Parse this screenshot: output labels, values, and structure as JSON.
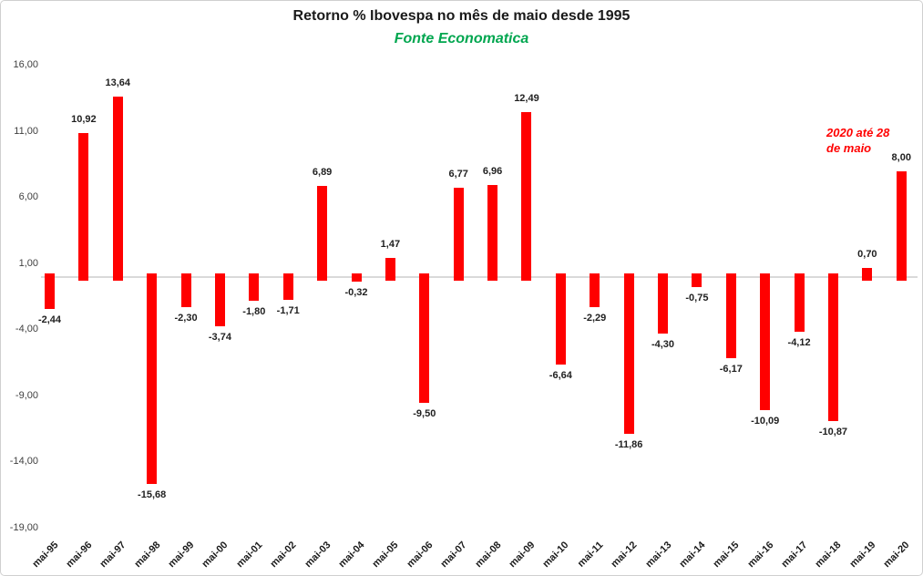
{
  "chart_data": {
    "type": "bar",
    "title": "Retorno % Ibovespa no mês de maio desde 1995",
    "subtitle": "Fonte Economatica",
    "categories": [
      "mai-95",
      "mai-96",
      "mai-97",
      "mai-98",
      "mai-99",
      "mai-00",
      "mai-01",
      "mai-02",
      "mai-03",
      "mai-04",
      "mai-05",
      "mai-06",
      "mai-07",
      "mai-08",
      "mai-09",
      "mai-10",
      "mai-11",
      "mai-12",
      "mai-13",
      "mai-14",
      "mai-15",
      "mai-16",
      "mai-17",
      "mai-18",
      "mai-19",
      "mai-20"
    ],
    "values": [
      -2.44,
      10.92,
      13.64,
      -15.68,
      -2.3,
      -3.74,
      -1.8,
      -1.71,
      6.89,
      -0.32,
      1.47,
      -9.5,
      6.77,
      6.96,
      12.49,
      -6.64,
      -2.29,
      -11.86,
      -4.3,
      -0.75,
      -6.17,
      -10.09,
      -4.12,
      -10.87,
      0.7,
      8.0
    ],
    "value_labels": [
      "-2,44",
      "10,92",
      "13,64",
      "-15,68",
      "-2,30",
      "-3,74",
      "-1,80",
      "-1,71",
      "6,89",
      "-0,32",
      "1,47",
      "-9,50",
      "6,77",
      "6,96",
      "12,49",
      "-6,64",
      "-2,29",
      "-11,86",
      "-4,30",
      "-0,75",
      "-6,17",
      "-10,09",
      "-4,12",
      "-10,87",
      "0,70",
      "8,00"
    ],
    "y_axis": {
      "tick_labels": [
        "16,00",
        "11,00",
        "6,00",
        "1,00",
        "-4,00",
        "-9,00",
        "-14,00",
        "-19,00"
      ],
      "min": -19,
      "max": 16,
      "step": 5
    },
    "xlabel": "",
    "ylabel": "",
    "grid": false,
    "legend": "none",
    "annotation": {
      "lines": [
        "2020 até 28",
        "de maio"
      ]
    },
    "colors": {
      "bar": "#ff0000",
      "annotation": "#ff0000",
      "subtitle": "#00a64f",
      "title": "#1a1a1a",
      "data_label": "#1f1f1f",
      "category_label": "#1a1a1a",
      "tick_label": "#404040",
      "axis_line": "#d9d9d9",
      "frame": "#d0d0d0"
    }
  }
}
